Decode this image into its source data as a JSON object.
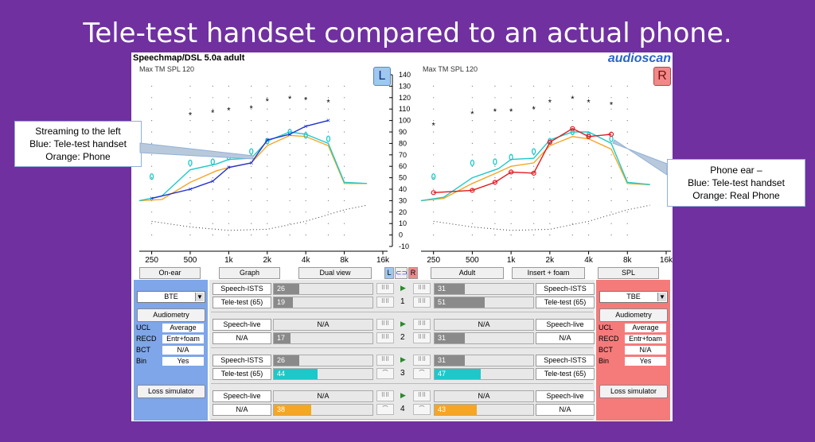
{
  "slide_title": "Tele-test handset compared to an actual phone.",
  "app": {
    "title": "Speechmap/DSL 5.0a adult",
    "brand": "audioscan",
    "max_tm_left": "Max TM SPL 120",
    "max_tm_right": "Max TM SPL 120",
    "left_badge": "L",
    "right_badge": "R",
    "y_ticks": [
      "140",
      "130",
      "120",
      "110",
      "100",
      "90",
      "80",
      "70",
      "60",
      "50",
      "40",
      "30",
      "20",
      "10",
      "0",
      "-10"
    ],
    "x_ticks": [
      "250",
      "500",
      "1k",
      "2k",
      "4k",
      "8k",
      "16k"
    ],
    "toolbar": {
      "on_ear": "On-ear",
      "graph": "Graph",
      "dual_view": "Dual view",
      "link_l": "L",
      "link_icon": "⊂⊃",
      "link_r": "R",
      "adult": "Adult",
      "insert_foam": "Insert + foam",
      "spl": "SPL"
    },
    "left_panel": {
      "style": "BTE",
      "audiometry": "Audiometry",
      "ucl_label": "UCL",
      "ucl_value": "Average",
      "recd_label": "RECD",
      "recd_value": "Entr+foam",
      "bct_label": "BCT",
      "bct_value": "N/A",
      "bin_label": "Bin",
      "bin_value": "Yes",
      "loss_sim": "Loss simulator"
    },
    "right_panel": {
      "style": "TBE",
      "audiometry": "Audiometry",
      "ucl_label": "UCL",
      "ucl_value": "Average",
      "recd_label": "RECD",
      "recd_value": "Entr+foam",
      "bct_label": "BCT",
      "bct_value": "N/A",
      "bin_label": "Bin",
      "bin_value": "Yes",
      "loss_sim": "Loss simulator"
    },
    "tests": [
      {
        "num": "1",
        "l_label_a": "Speech-ISTS",
        "l_label_b": "Tele-test (65)",
        "l_val_a": "26",
        "l_val_b": "19",
        "r_val_a": "31",
        "r_val_b": "51",
        "r_label_a": "Speech-ISTS",
        "r_label_b": "Tele-test (65)"
      },
      {
        "num": "2",
        "l_label_a": "Speech-live",
        "l_label_b": "N/A",
        "l_val_a": "N/A",
        "l_val_b": "17",
        "r_val_a": "N/A",
        "r_val_b": "31",
        "r_label_a": "Speech-live",
        "r_label_b": "N/A"
      },
      {
        "num": "3",
        "l_label_a": "Speech-ISTS",
        "l_label_b": "Tele-test (65)",
        "l_val_a": "26",
        "l_val_b": "44",
        "r_val_a": "31",
        "r_val_b": "47",
        "r_label_a": "Speech-ISTS",
        "r_label_b": "Tele-test (65)"
      },
      {
        "num": "4",
        "l_label_a": "Speech-live",
        "l_label_b": "N/A",
        "l_val_a": "N/A",
        "l_val_b": "38",
        "r_val_a": "N/A",
        "r_val_b": "43",
        "r_label_a": "Speech-live",
        "r_label_b": "N/A"
      }
    ]
  },
  "callout_left": {
    "line1": "Streaming to the left",
    "line2": "Blue: Tele-test handset",
    "line3": "Orange: Phone"
  },
  "callout_right": {
    "line1": "Phone ear –",
    "line2": "Blue: Tele-test handset",
    "line3": "Orange: Real Phone"
  },
  "colors": {
    "blue": "#1f2fd0",
    "orange": "#f5a623",
    "cyan": "#1ec8c8",
    "red": "#e0181d"
  }
}
